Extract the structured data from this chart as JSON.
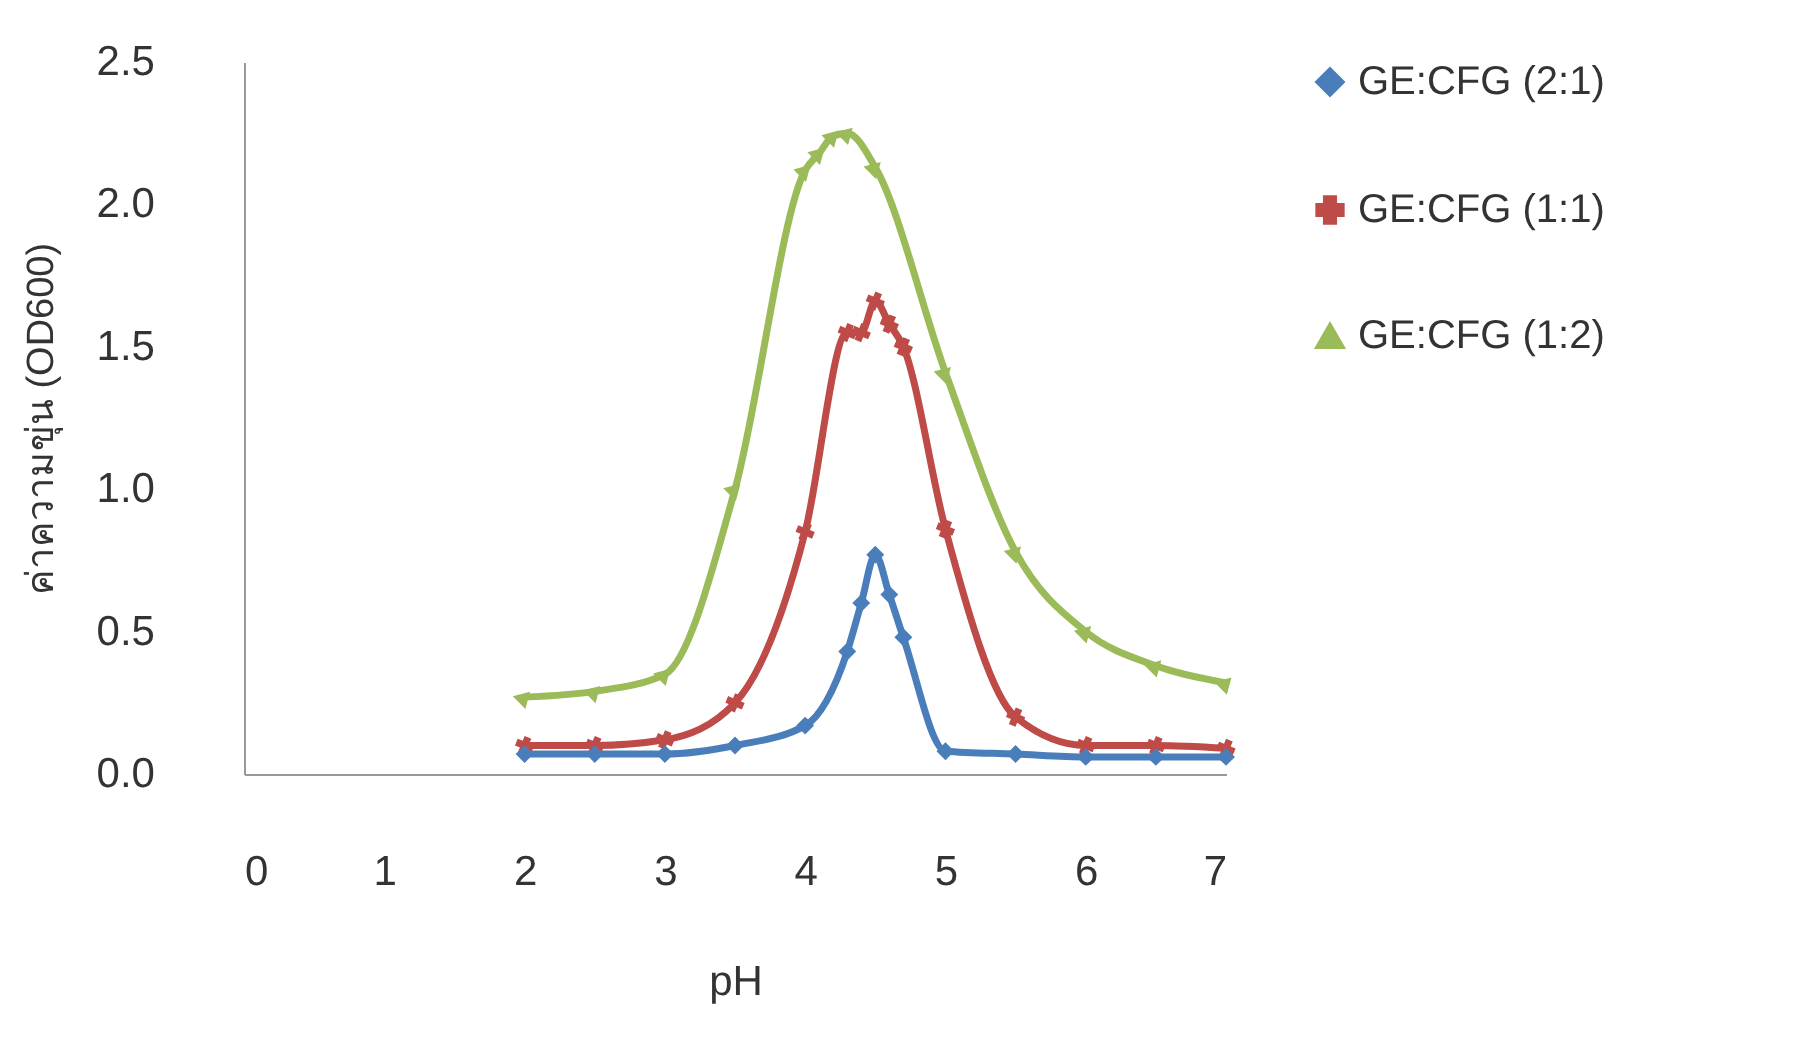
{
  "chart_data": {
    "type": "line",
    "xlabel": "pH",
    "ylabel": "ค่าความขุ่น (OD600)",
    "xlim": [
      0,
      7
    ],
    "xticks": [
      0,
      1,
      2,
      3,
      4,
      5,
      6,
      7
    ],
    "ylim": [
      0,
      2.5
    ],
    "yticks": [
      {
        "value": 0,
        "label": "0.0"
      },
      {
        "value": 0.5,
        "label": "0.5"
      },
      {
        "value": 1,
        "label": "1.0"
      },
      {
        "value": 1.5,
        "label": "1.5"
      },
      {
        "value": 2,
        "label": "2.0"
      },
      {
        "value": 2.5,
        "label": "2.5"
      }
    ],
    "grid": false,
    "legend": "right",
    "series": [
      {
        "name": "GE:CFG (2:1)",
        "color": "#4a7ebb",
        "marker": "diamond",
        "x": [
          2,
          2.5,
          3,
          3.5,
          4,
          4.3,
          4.4,
          4.5,
          4.6,
          4.7,
          5,
          5.5,
          6,
          6.5,
          7
        ],
        "values": [
          0.07,
          0.07,
          0.07,
          0.1,
          0.17,
          0.43,
          0.6,
          0.77,
          0.63,
          0.48,
          0.08,
          0.07,
          0.06,
          0.06,
          0.06
        ]
      },
      {
        "name": "GE:CFG (1:1)",
        "color": "#be4b48",
        "marker": "cross",
        "x": [
          2,
          2.5,
          3,
          3.5,
          4,
          4.3,
          4.4,
          4.5,
          4.6,
          4.7,
          5,
          5.5,
          6,
          6.5,
          7
        ],
        "values": [
          0.1,
          0.1,
          0.12,
          0.25,
          0.85,
          1.55,
          1.55,
          1.66,
          1.58,
          1.5,
          0.86,
          0.2,
          0.1,
          0.1,
          0.09
        ]
      },
      {
        "name": "GE:CFG (1:2)",
        "color": "#9bbb59",
        "marker": "triangle",
        "x": [
          2,
          2.5,
          3,
          3.5,
          4,
          4.1,
          4.2,
          4.3,
          4.5,
          5,
          5.5,
          6,
          6.5,
          7
        ],
        "values": [
          0.27,
          0.29,
          0.35,
          1.0,
          2.12,
          2.18,
          2.24,
          2.25,
          2.13,
          1.41,
          0.78,
          0.5,
          0.38,
          0.32
        ]
      }
    ]
  }
}
